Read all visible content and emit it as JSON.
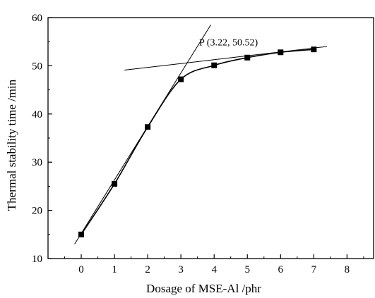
{
  "chart_data": {
    "type": "line",
    "title": "",
    "xlabel": "Dosage of MSE-Al /phr",
    "ylabel": "Thermal stability time /min",
    "xlim": [
      -1,
      8.8
    ],
    "ylim": [
      10,
      60
    ],
    "xticks": [
      0,
      1,
      2,
      3,
      4,
      5,
      6,
      7,
      8
    ],
    "yticks": [
      10,
      20,
      30,
      40,
      50,
      60
    ],
    "grid": false,
    "legend": "none",
    "series": [
      {
        "marker": "square",
        "color": "#000000",
        "x": [
          0,
          1,
          2,
          3,
          4,
          5,
          6,
          7
        ],
        "y": [
          15.0,
          25.5,
          37.3,
          47.2,
          50.1,
          51.7,
          52.8,
          53.4
        ]
      }
    ],
    "tangent_lines": [
      {
        "x": [
          -0.2,
          3.9
        ],
        "y": [
          13.0,
          58.5
        ]
      },
      {
        "x": [
          1.3,
          7.4
        ],
        "y": [
          49.1,
          54.0
        ]
      }
    ],
    "annotations": [
      {
        "text": "P (3.22, 50.52)",
        "x": 3.55,
        "y": 54.2
      }
    ]
  }
}
